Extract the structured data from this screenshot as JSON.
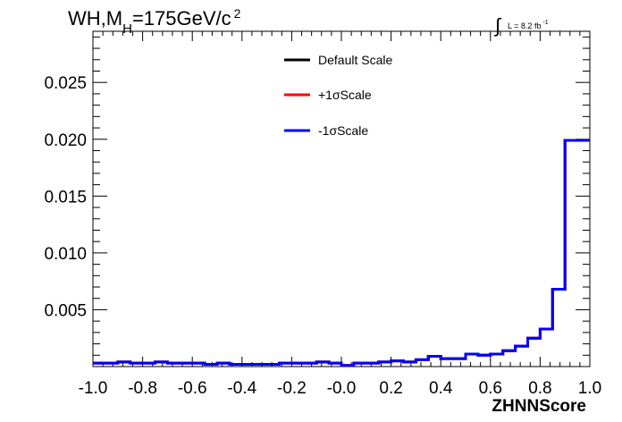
{
  "chart_data": {
    "type": "line",
    "title_main": "WH,M",
    "title_sub": "H",
    "title_rest": "=175GeV/c",
    "title_sup": "2",
    "lumi": {
      "sym": "∫",
      "text": "L = 8.2 fb",
      "sup": "-1"
    },
    "xlabel": "ZHNNScore",
    "ylabel": "",
    "xlim": [
      -1.0,
      1.0
    ],
    "ylim": [
      0,
      0.0295
    ],
    "x_ticks": [
      "-1.0",
      "-0.8",
      "-0.6",
      "-0.4",
      "-0.2",
      "-0.0",
      "0.2",
      "0.4",
      "0.6",
      "0.8",
      "1.0"
    ],
    "x_tick_values": [
      -1.0,
      -0.8,
      -0.6,
      -0.4,
      -0.2,
      0.0,
      0.2,
      0.4,
      0.6,
      0.8,
      1.0
    ],
    "y_ticks": [
      "0.005",
      "0.010",
      "0.015",
      "0.020",
      "0.025"
    ],
    "y_tick_values": [
      0.005,
      0.01,
      0.015,
      0.02,
      0.025
    ],
    "bin_edges_start": -1.0,
    "bin_width": 0.05,
    "legend_position": "top-center",
    "series": [
      {
        "name": "Default Scale",
        "color": "#000000",
        "values": [
          0.0003,
          0.0003,
          0.0004,
          0.0003,
          0.0003,
          0.0004,
          0.0003,
          0.0003,
          0.0003,
          0.0002,
          0.0003,
          0.0002,
          0.0002,
          0.0002,
          0.0002,
          0.0003,
          0.0003,
          0.0003,
          0.0004,
          0.0003,
          0.0001,
          0.0003,
          0.0003,
          0.0004,
          0.0005,
          0.0004,
          0.0006,
          0.0009,
          0.0007,
          0.0007,
          0.0011,
          0.001,
          0.0011,
          0.0014,
          0.0018,
          0.0025,
          0.0033,
          0.0068,
          0.0199,
          0.0199
        ]
      },
      {
        "name": "+1σScale",
        "color": "#ff0000",
        "values": [
          0.0003,
          0.0003,
          0.0004,
          0.0003,
          0.0003,
          0.0004,
          0.0003,
          0.0003,
          0.0003,
          0.0002,
          0.0003,
          0.0002,
          0.0002,
          0.0002,
          0.0002,
          0.0003,
          0.0003,
          0.0003,
          0.0004,
          0.0003,
          0.0001,
          0.0003,
          0.0003,
          0.0004,
          0.0005,
          0.0004,
          0.0006,
          0.0009,
          0.0007,
          0.0007,
          0.0011,
          0.001,
          0.0011,
          0.0014,
          0.0018,
          0.0025,
          0.0033,
          0.0068,
          0.0199,
          0.0199
        ]
      },
      {
        "name": "-1σScale",
        "color": "#0000ff",
        "values": [
          0.0003,
          0.0003,
          0.0004,
          0.0003,
          0.0003,
          0.0004,
          0.0003,
          0.0003,
          0.0003,
          0.0002,
          0.0003,
          0.0002,
          0.0002,
          0.0002,
          0.0002,
          0.0003,
          0.0003,
          0.0003,
          0.0004,
          0.0003,
          0.0001,
          0.0003,
          0.0003,
          0.0004,
          0.0005,
          0.0004,
          0.0006,
          0.0009,
          0.0007,
          0.0007,
          0.0011,
          0.001,
          0.0011,
          0.0014,
          0.0018,
          0.0025,
          0.0033,
          0.0068,
          0.0199,
          0.0199
        ]
      }
    ]
  }
}
